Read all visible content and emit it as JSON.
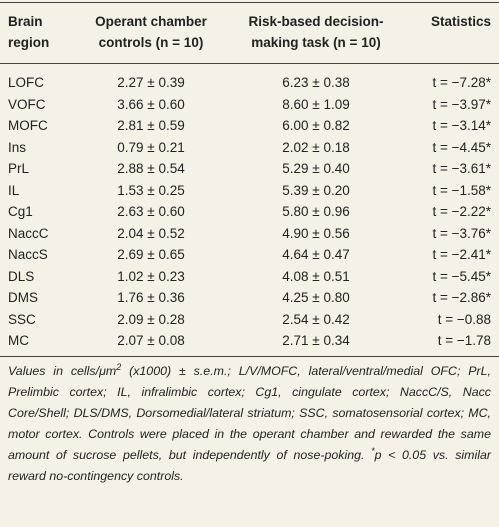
{
  "table": {
    "headers": [
      "Brain region",
      "Operant chamber controls (n = 10)",
      "Risk-based decision-making task (n = 10)",
      "Statistics"
    ],
    "rows": [
      [
        "LOFC",
        "2.27 ± 0.39",
        "6.23 ± 0.38",
        "t = −7.28*"
      ],
      [
        "VOFC",
        "3.66 ± 0.60",
        "8.60 ± 1.09",
        "t = −3.97*"
      ],
      [
        "MOFC",
        "2.81 ± 0.59",
        "6.00 ± 0.82",
        "t = −3.14*"
      ],
      [
        "Ins",
        "0.79 ± 0.21",
        "2.02 ± 0.18",
        "t = −4.45*"
      ],
      [
        "PrL",
        "2.88 ± 0.54",
        "5.29 ± 0.40",
        "t = −3.61*"
      ],
      [
        "IL",
        "1.53 ± 0.25",
        "5.39 ± 0.20",
        "t = −1.58*"
      ],
      [
        "Cg1",
        "2.63 ± 0.60",
        "5.80 ± 0.96",
        "t = −2.22*"
      ],
      [
        "NaccC",
        "2.04 ± 0.52",
        "4.90 ± 0.56",
        "t = −3.76*"
      ],
      [
        "NaccS",
        "2.69 ± 0.65",
        "4.64 ± 0.47",
        "t = −2.41*"
      ],
      [
        "DLS",
        "1.02 ± 0.23",
        "4.08 ± 0.51",
        "t = −5.45*"
      ],
      [
        "DMS",
        "1.76 ± 0.36",
        "4.25 ± 0.80",
        "t = −2.86*"
      ],
      [
        "SSC",
        "2.09 ± 0.28",
        "2.54 ± 0.42",
        "t = −0.88"
      ],
      [
        "MC",
        "2.07 ± 0.08",
        "2.71 ± 0.34",
        "t = −1.78"
      ]
    ]
  },
  "footnote": [
    "Values in cells/μm",
    "2",
    " (x1000) ± s.e.m.; L/V/MOFC, lateral/ventral/medial OFC; PrL, Prelimbic cortex; IL, infralimbic cortex; Cg1, cingulate cortex; NaccC/S, Nacc Core/Shell; DLS/DMS, Dorsomedial/lateral striatum; SSC, somatosensorial cortex; MC, motor cortex. Controls were placed in the operant chamber and rewarded the same amount of sucrose pellets, but independently of nose-poking. ",
    "*",
    "p < 0.05 vs. similar reward no-contingency controls."
  ]
}
